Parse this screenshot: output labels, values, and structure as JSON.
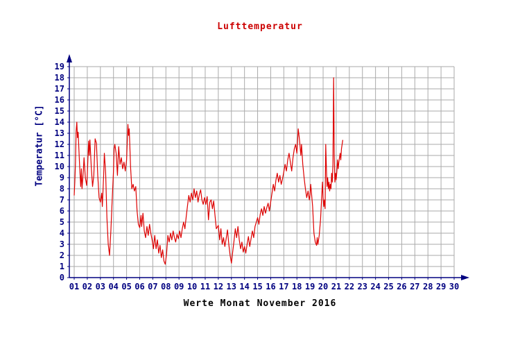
{
  "chart_data": {
    "type": "line",
    "title": "Lufttemperatur",
    "xlabel": "Werte Monat November 2016",
    "ylabel": "Temperatur [°C]",
    "x_tick_labels": [
      "01",
      "02",
      "03",
      "04",
      "05",
      "06",
      "07",
      "08",
      "09",
      "10",
      "11",
      "12",
      "13",
      "14",
      "15",
      "16",
      "17",
      "18",
      "19",
      "20",
      "21",
      "22",
      "23",
      "24",
      "25",
      "26",
      "27",
      "28",
      "29",
      "30"
    ],
    "y_ticks": [
      0,
      1,
      2,
      3,
      4,
      5,
      6,
      7,
      8,
      9,
      10,
      11,
      12,
      13,
      14,
      15,
      16,
      17,
      18,
      19
    ],
    "xlim": [
      1,
      30
    ],
    "ylim": [
      0,
      19
    ],
    "grid": true,
    "colors": {
      "series": "#dd0000",
      "axis": "#000080",
      "grid": "#aaaaaa",
      "title": "#cc0000",
      "xlabel": "#000000"
    },
    "series": [
      {
        "name": "Lufttemperatur",
        "color": "#dd0000",
        "points": [
          [
            1.0,
            7.4
          ],
          [
            1.05,
            8.6
          ],
          [
            1.1,
            10.4
          ],
          [
            1.15,
            13.2
          ],
          [
            1.2,
            14.0
          ],
          [
            1.25,
            12.6
          ],
          [
            1.3,
            13.1
          ],
          [
            1.4,
            10.4
          ],
          [
            1.5,
            8.2
          ],
          [
            1.55,
            9.8
          ],
          [
            1.6,
            8.0
          ],
          [
            1.7,
            9.6
          ],
          [
            1.75,
            10.8
          ],
          [
            1.85,
            9.0
          ],
          [
            1.95,
            8.3
          ],
          [
            2.0,
            9.2
          ],
          [
            2.1,
            12.3
          ],
          [
            2.15,
            11.0
          ],
          [
            2.2,
            12.4
          ],
          [
            2.3,
            10.0
          ],
          [
            2.4,
            8.2
          ],
          [
            2.5,
            9.2
          ],
          [
            2.6,
            12.5
          ],
          [
            2.7,
            12.1
          ],
          [
            2.8,
            9.2
          ],
          [
            2.9,
            7.2
          ],
          [
            3.0,
            6.8
          ],
          [
            3.1,
            7.6
          ],
          [
            3.15,
            6.4
          ],
          [
            3.25,
            9.2
          ],
          [
            3.3,
            11.2
          ],
          [
            3.4,
            9.4
          ],
          [
            3.5,
            5.4
          ],
          [
            3.6,
            3.0
          ],
          [
            3.7,
            2.0
          ],
          [
            3.8,
            4.2
          ],
          [
            3.9,
            7.0
          ],
          [
            4.0,
            9.6
          ],
          [
            4.05,
            11.6
          ],
          [
            4.1,
            12.0
          ],
          [
            4.2,
            11.2
          ],
          [
            4.3,
            9.2
          ],
          [
            4.35,
            10.6
          ],
          [
            4.4,
            11.8
          ],
          [
            4.5,
            10.2
          ],
          [
            4.6,
            10.8
          ],
          [
            4.7,
            9.8
          ],
          [
            4.8,
            10.4
          ],
          [
            4.9,
            9.6
          ],
          [
            5.0,
            10.6
          ],
          [
            5.05,
            12.2
          ],
          [
            5.1,
            13.8
          ],
          [
            5.15,
            12.8
          ],
          [
            5.2,
            13.4
          ],
          [
            5.3,
            10.0
          ],
          [
            5.4,
            8.0
          ],
          [
            5.5,
            8.4
          ],
          [
            5.6,
            7.8
          ],
          [
            5.7,
            8.2
          ],
          [
            5.8,
            6.0
          ],
          [
            5.9,
            4.8
          ],
          [
            6.0,
            4.5
          ],
          [
            6.1,
            5.6
          ],
          [
            6.15,
            4.6
          ],
          [
            6.25,
            5.8
          ],
          [
            6.35,
            4.2
          ],
          [
            6.45,
            3.6
          ],
          [
            6.55,
            4.6
          ],
          [
            6.65,
            3.8
          ],
          [
            6.75,
            4.8
          ],
          [
            6.85,
            4.0
          ],
          [
            6.95,
            3.4
          ],
          [
            7.05,
            2.6
          ],
          [
            7.15,
            3.8
          ],
          [
            7.25,
            2.6
          ],
          [
            7.35,
            3.4
          ],
          [
            7.45,
            2.2
          ],
          [
            7.55,
            2.9
          ],
          [
            7.65,
            1.8
          ],
          [
            7.75,
            2.5
          ],
          [
            7.85,
            1.5
          ],
          [
            7.95,
            1.2
          ],
          [
            8.05,
            2.1
          ],
          [
            8.15,
            3.8
          ],
          [
            8.25,
            3.2
          ],
          [
            8.35,
            4.0
          ],
          [
            8.45,
            3.4
          ],
          [
            8.55,
            4.2
          ],
          [
            8.65,
            3.6
          ],
          [
            8.75,
            3.2
          ],
          [
            8.85,
            3.9
          ],
          [
            8.95,
            3.5
          ],
          [
            9.05,
            4.2
          ],
          [
            9.15,
            3.6
          ],
          [
            9.25,
            4.4
          ],
          [
            9.35,
            5.0
          ],
          [
            9.45,
            4.4
          ],
          [
            9.55,
            5.5
          ],
          [
            9.65,
            6.5
          ],
          [
            9.75,
            7.4
          ],
          [
            9.85,
            6.8
          ],
          [
            9.95,
            7.6
          ],
          [
            10.05,
            7.0
          ],
          [
            10.15,
            8.0
          ],
          [
            10.25,
            7.2
          ],
          [
            10.35,
            7.8
          ],
          [
            10.45,
            6.8
          ],
          [
            10.55,
            7.5
          ],
          [
            10.65,
            7.9
          ],
          [
            10.75,
            7.0
          ],
          [
            10.85,
            6.6
          ],
          [
            10.95,
            7.2
          ],
          [
            11.05,
            6.6
          ],
          [
            11.15,
            7.3
          ],
          [
            11.25,
            5.2
          ],
          [
            11.35,
            6.8
          ],
          [
            11.45,
            7.0
          ],
          [
            11.55,
            6.2
          ],
          [
            11.65,
            6.9
          ],
          [
            11.75,
            5.6
          ],
          [
            11.85,
            4.4
          ],
          [
            12.0,
            4.7
          ],
          [
            12.1,
            3.4
          ],
          [
            12.2,
            4.4
          ],
          [
            12.3,
            3.0
          ],
          [
            12.4,
            3.6
          ],
          [
            12.5,
            2.8
          ],
          [
            12.6,
            3.5
          ],
          [
            12.7,
            4.3
          ],
          [
            12.8,
            3.0
          ],
          [
            12.9,
            2.0
          ],
          [
            13.0,
            1.3
          ],
          [
            13.1,
            2.3
          ],
          [
            13.2,
            3.3
          ],
          [
            13.3,
            4.4
          ],
          [
            13.4,
            3.6
          ],
          [
            13.5,
            4.6
          ],
          [
            13.6,
            3.4
          ],
          [
            13.7,
            2.6
          ],
          [
            13.8,
            3.2
          ],
          [
            13.9,
            2.3
          ],
          [
            14.0,
            2.8
          ],
          [
            14.1,
            2.2
          ],
          [
            14.2,
            3.0
          ],
          [
            14.3,
            3.7
          ],
          [
            14.4,
            2.8
          ],
          [
            14.5,
            3.5
          ],
          [
            14.6,
            4.2
          ],
          [
            14.7,
            3.6
          ],
          [
            14.8,
            4.6
          ],
          [
            14.9,
            5.0
          ],
          [
            15.0,
            5.4
          ],
          [
            15.1,
            4.8
          ],
          [
            15.2,
            5.7
          ],
          [
            15.3,
            6.2
          ],
          [
            15.4,
            5.6
          ],
          [
            15.5,
            6.4
          ],
          [
            15.6,
            5.8
          ],
          [
            15.7,
            6.3
          ],
          [
            15.8,
            6.7
          ],
          [
            15.9,
            6.0
          ],
          [
            16.0,
            6.8
          ],
          [
            16.1,
            7.6
          ],
          [
            16.2,
            8.4
          ],
          [
            16.3,
            7.8
          ],
          [
            16.4,
            8.8
          ],
          [
            16.5,
            9.4
          ],
          [
            16.6,
            8.6
          ],
          [
            16.7,
            9.2
          ],
          [
            16.8,
            8.4
          ],
          [
            16.9,
            8.9
          ],
          [
            17.0,
            9.5
          ],
          [
            17.1,
            10.2
          ],
          [
            17.2,
            9.6
          ],
          [
            17.3,
            10.6
          ],
          [
            17.4,
            11.2
          ],
          [
            17.5,
            10.4
          ],
          [
            17.6,
            9.6
          ],
          [
            17.7,
            10.8
          ],
          [
            17.8,
            11.6
          ],
          [
            17.9,
            12.0
          ],
          [
            18.0,
            11.2
          ],
          [
            18.05,
            12.3
          ],
          [
            18.1,
            13.4
          ],
          [
            18.2,
            12.4
          ],
          [
            18.3,
            11.0
          ],
          [
            18.35,
            12.0
          ],
          [
            18.45,
            10.2
          ],
          [
            18.55,
            9.0
          ],
          [
            18.65,
            8.0
          ],
          [
            18.75,
            7.2
          ],
          [
            18.85,
            7.8
          ],
          [
            18.95,
            7.0
          ],
          [
            19.0,
            7.4
          ],
          [
            19.05,
            8.4
          ],
          [
            19.1,
            7.8
          ],
          [
            19.2,
            6.4
          ],
          [
            19.3,
            4.0
          ],
          [
            19.4,
            3.2
          ],
          [
            19.5,
            2.9
          ],
          [
            19.55,
            3.6
          ],
          [
            19.6,
            3.0
          ],
          [
            19.7,
            3.8
          ],
          [
            19.8,
            5.2
          ],
          [
            19.9,
            7.4
          ],
          [
            19.95,
            8.6
          ],
          [
            20.0,
            7.2
          ],
          [
            20.05,
            6.4
          ],
          [
            20.1,
            7.0
          ],
          [
            20.15,
            6.2
          ],
          [
            20.2,
            12.0
          ],
          [
            20.25,
            9.8
          ],
          [
            20.3,
            8.2
          ],
          [
            20.35,
            9.0
          ],
          [
            20.4,
            8.0
          ],
          [
            20.45,
            8.6
          ],
          [
            20.5,
            7.8
          ],
          [
            20.55,
            8.4
          ],
          [
            20.6,
            8.0
          ],
          [
            20.65,
            9.4
          ],
          [
            20.7,
            8.6
          ],
          [
            20.75,
            10.2
          ],
          [
            20.8,
            18.0
          ],
          [
            20.85,
            11.0
          ],
          [
            20.9,
            8.6
          ],
          [
            20.95,
            9.4
          ],
          [
            21.0,
            8.8
          ],
          [
            21.05,
            9.6
          ],
          [
            21.1,
            10.6
          ],
          [
            21.15,
            9.8
          ],
          [
            21.2,
            10.4
          ],
          [
            21.3,
            11.2
          ],
          [
            21.35,
            10.6
          ],
          [
            21.4,
            11.6
          ],
          [
            21.5,
            12.4
          ]
        ]
      }
    ]
  }
}
